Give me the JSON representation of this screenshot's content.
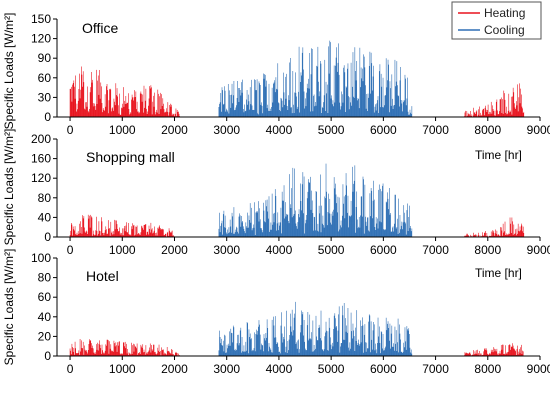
{
  "figure": {
    "y_axis_title": "Specific Loads [W/m²]",
    "legend": [
      "Heating",
      "Cooling"
    ],
    "colors": {
      "heating": "#e8141e",
      "cooling": "#2e6fb5"
    }
  },
  "chart_data": [
    {
      "type": "bar",
      "title": "Office",
      "xlabel": "",
      "ylabel": "Specific Loads [W/m²]",
      "xlim": [
        -250,
        9000
      ],
      "ylim": [
        0,
        150
      ],
      "x_ticks": [
        0,
        1000,
        2000,
        3000,
        4000,
        5000,
        6000,
        7000,
        8000,
        9000
      ],
      "y_ticks": [
        0,
        30,
        60,
        90,
        120,
        150
      ],
      "legend_position": "top-right",
      "series": [
        {
          "name": "Heating",
          "color": "#e8141e",
          "segments": [
            {
              "x_range": [
                0,
                2100
              ],
              "peaks": [
                [
                  0,
                  58
                ],
                [
                  150,
                  75
                ],
                [
                  300,
                  84
                ],
                [
                  500,
                  78
                ],
                [
                  700,
                  60
                ],
                [
                  900,
                  52
                ],
                [
                  1100,
                  46
                ],
                [
                  1300,
                  42
                ],
                [
                  1500,
                  58
                ],
                [
                  1700,
                  48
                ],
                [
                  1900,
                  22
                ],
                [
                  2100,
                  8
                ]
              ]
            },
            {
              "x_range": [
                7550,
                8700
              ],
              "peaks": [
                [
                  7550,
                  12
                ],
                [
                  7800,
                  18
                ],
                [
                  8000,
                  22
                ],
                [
                  8200,
                  30
                ],
                [
                  8400,
                  52
                ],
                [
                  8550,
                  75
                ],
                [
                  8700,
                  30
                ]
              ]
            }
          ]
        },
        {
          "name": "Cooling",
          "color": "#2e6fb5",
          "segments": [
            {
              "x_range": [
                2850,
                6550
              ],
              "peaks": [
                [
                  2850,
                  48
                ],
                [
                  3100,
                  55
                ],
                [
                  3300,
                  58
                ],
                [
                  3500,
                  60
                ],
                [
                  3700,
                  68
                ],
                [
                  3900,
                  84
                ],
                [
                  4100,
                  100
                ],
                [
                  4300,
                  120
                ],
                [
                  4500,
                  108
                ],
                [
                  4700,
                  112
                ],
                [
                  4900,
                  118
                ],
                [
                  5100,
                  116
                ],
                [
                  5300,
                  115
                ],
                [
                  5500,
                  114
                ],
                [
                  5700,
                  108
                ],
                [
                  5900,
                  102
                ],
                [
                  6100,
                  96
                ],
                [
                  6300,
                  86
                ],
                [
                  6550,
                  50
                ]
              ]
            }
          ]
        }
      ]
    },
    {
      "type": "bar",
      "title": "Shopping mall",
      "xlabel": "Time [hr]",
      "ylabel": "Specific Loads [W/m²]",
      "xlim": [
        -250,
        9000
      ],
      "ylim": [
        0,
        200
      ],
      "x_ticks": [
        0,
        1000,
        2000,
        3000,
        4000,
        5000,
        6000,
        7000,
        8000,
        9000
      ],
      "y_ticks": [
        0,
        40,
        80,
        120,
        160,
        200
      ],
      "series": [
        {
          "name": "Heating",
          "color": "#e8141e",
          "segments": [
            {
              "x_range": [
                0,
                2000
              ],
              "peaks": [
                [
                  0,
                  28
                ],
                [
                  150,
                  40
                ],
                [
                  300,
                  52
                ],
                [
                  500,
                  45
                ],
                [
                  700,
                  40
                ],
                [
                  900,
                  34
                ],
                [
                  1100,
                  30
                ],
                [
                  1300,
                  26
                ],
                [
                  1500,
                  32
                ],
                [
                  1700,
                  24
                ],
                [
                  1900,
                  22
                ],
                [
                  2000,
                  10
                ]
              ]
            },
            {
              "x_range": [
                7550,
                8700
              ],
              "peaks": [
                [
                  7550,
                  6
                ],
                [
                  7800,
                  10
                ],
                [
                  8000,
                  14
                ],
                [
                  8200,
                  18
                ],
                [
                  8400,
                  40
                ],
                [
                  8520,
                  60
                ],
                [
                  8700,
                  22
                ]
              ]
            }
          ]
        },
        {
          "name": "Cooling",
          "color": "#2e6fb5",
          "segments": [
            {
              "x_range": [
                2850,
                6550
              ],
              "peaks": [
                [
                  2850,
                  50
                ],
                [
                  3100,
                  62
                ],
                [
                  3300,
                  70
                ],
                [
                  3500,
                  74
                ],
                [
                  3700,
                  82
                ],
                [
                  3900,
                  96
                ],
                [
                  4100,
                  120
                ],
                [
                  4300,
                  158
                ],
                [
                  4500,
                  140
                ],
                [
                  4700,
                  142
                ],
                [
                  4900,
                  152
                ],
                [
                  5100,
                  150
                ],
                [
                  5300,
                  154
                ],
                [
                  5500,
                  146
                ],
                [
                  5700,
                  130
                ],
                [
                  5900,
                  118
                ],
                [
                  6100,
                  108
                ],
                [
                  6300,
                  100
                ],
                [
                  6550,
                  62
                ]
              ]
            }
          ]
        }
      ]
    },
    {
      "type": "bar",
      "title": "Hotel",
      "xlabel": "Time [hr]",
      "ylabel": "Specific Loads [W/m²]",
      "xlim": [
        -250,
        9000
      ],
      "ylim": [
        0,
        100
      ],
      "x_ticks": [
        0,
        1000,
        2000,
        3000,
        4000,
        5000,
        6000,
        7000,
        8000,
        9000
      ],
      "y_ticks": [
        0,
        20,
        40,
        60,
        80,
        100
      ],
      "series": [
        {
          "name": "Heating",
          "color": "#e8141e",
          "segments": [
            {
              "x_range": [
                0,
                2100
              ],
              "peaks": [
                [
                  0,
                  12
                ],
                [
                  200,
                  18
                ],
                [
                  400,
                  20
                ],
                [
                  600,
                  18
                ],
                [
                  800,
                  16
                ],
                [
                  1000,
                  15
                ],
                [
                  1200,
                  14
                ],
                [
                  1400,
                  13
                ],
                [
                  1600,
                  13
                ],
                [
                  1800,
                  11
                ],
                [
                  2000,
                  6
                ],
                [
                  2100,
                  2
                ]
              ]
            },
            {
              "x_range": [
                7550,
                8700
              ],
              "peaks": [
                [
                  7550,
                  5
                ],
                [
                  7800,
                  7
                ],
                [
                  8000,
                  9
                ],
                [
                  8200,
                  11
                ],
                [
                  8400,
                  16
                ],
                [
                  8550,
                  21
                ],
                [
                  8700,
                  6
                ]
              ]
            }
          ]
        },
        {
          "name": "Cooling",
          "color": "#2e6fb5",
          "segments": [
            {
              "x_range": [
                2850,
                6550
              ],
              "peaks": [
                [
                  2850,
                  36
                ],
                [
                  3100,
                  32
                ],
                [
                  3300,
                  35
                ],
                [
                  3500,
                  36
                ],
                [
                  3700,
                  38
                ],
                [
                  3900,
                  42
                ],
                [
                  4100,
                  50
                ],
                [
                  4300,
                  57
                ],
                [
                  4500,
                  46
                ],
                [
                  4700,
                  46
                ],
                [
                  4900,
                  50
                ],
                [
                  5100,
                  52
                ],
                [
                  5300,
                  55
                ],
                [
                  5500,
                  50
                ],
                [
                  5700,
                  44
                ],
                [
                  5900,
                  42
                ],
                [
                  6100,
                  40
                ],
                [
                  6300,
                  38
                ],
                [
                  6550,
                  26
                ]
              ]
            }
          ]
        }
      ]
    }
  ]
}
